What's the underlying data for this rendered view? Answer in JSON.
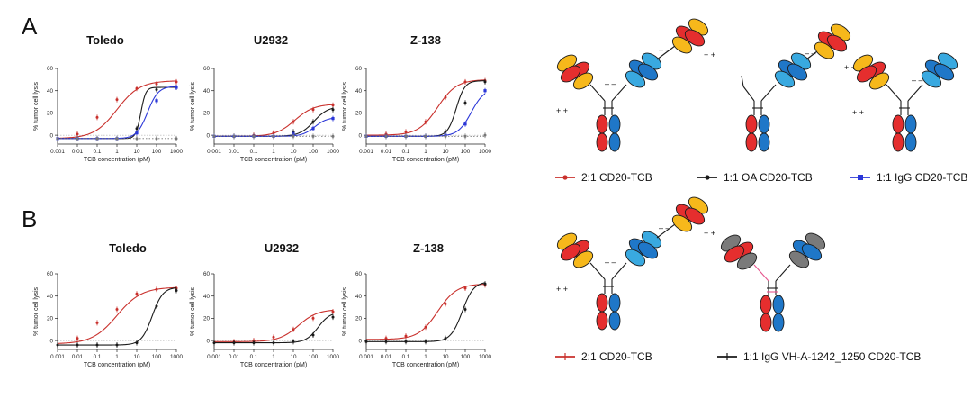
{
  "panels": [
    {
      "letter": "A"
    },
    {
      "letter": "B"
    }
  ],
  "colors": {
    "red": "#c9302c",
    "black": "#1a1a1a",
    "blue": "#2b37d8",
    "gray": "#777777"
  },
  "chart_data": [
    {
      "type": "line",
      "panel": "A",
      "title": "Toledo",
      "xlabel": "TCB concentration (pM)",
      "ylabel": "% tumor cell lysis",
      "xscale": "log",
      "xticks": [
        "0.001",
        "0.01",
        "0.1",
        "1",
        "10",
        "100",
        "1000"
      ],
      "yticks": [
        0,
        20,
        40,
        60
      ],
      "ylim": [
        -8,
        60
      ],
      "series": [
        {
          "key": "red",
          "x": [
            0.01,
            0.1,
            1,
            10,
            100,
            1000
          ],
          "values": [
            1,
            16,
            32,
            42,
            46,
            48
          ],
          "fit": {
            "bottom": -3,
            "top": 49,
            "ec50": 1.0,
            "hill": 0.75
          }
        },
        {
          "key": "black",
          "x": [
            0.001,
            0.01,
            0.1,
            1,
            10,
            100,
            1000
          ],
          "values": [
            -3,
            -3,
            -3,
            -3,
            6,
            41,
            43
          ],
          "fit": {
            "bottom": -3,
            "top": 43,
            "ec50": 16,
            "hill": 3.5
          }
        },
        {
          "key": "blue",
          "x": [
            0.001,
            0.01,
            0.1,
            1,
            10,
            100,
            1000
          ],
          "values": [
            -3,
            -3,
            -3,
            -3,
            2,
            31,
            43
          ],
          "fit": {
            "bottom": -3,
            "top": 44,
            "ec50": 35,
            "hill": 1.6
          }
        },
        {
          "key": "gray",
          "dotted": true,
          "x": [
            0.001,
            0.01,
            0.1,
            1,
            10,
            100,
            1000
          ],
          "values": [
            -3,
            -3,
            -3,
            -3,
            -3,
            -3,
            -3
          ],
          "fit": {
            "bottom": -3,
            "top": -3,
            "ec50": 1,
            "hill": 1
          }
        }
      ]
    },
    {
      "type": "line",
      "panel": "A",
      "title": "U2932",
      "xlabel": "TCB concentration (pM)",
      "ylabel": "% tumor cell lysis",
      "xscale": "log",
      "xticks": [
        "0.001",
        "0.01",
        "0.1",
        "1",
        "10",
        "100",
        "1000"
      ],
      "yticks": [
        0,
        20,
        40,
        60
      ],
      "ylim": [
        -8,
        60
      ],
      "series": [
        {
          "key": "red",
          "x": [
            0.01,
            0.1,
            1,
            10,
            100,
            1000
          ],
          "values": [
            -1,
            0,
            2,
            12,
            23,
            27
          ],
          "fit": {
            "bottom": -1,
            "top": 28,
            "ec50": 12,
            "hill": 0.9
          }
        },
        {
          "key": "black",
          "x": [
            0.001,
            0.01,
            0.1,
            1,
            10,
            100,
            1000
          ],
          "values": [
            -1,
            -1,
            -1,
            -1,
            3,
            12,
            23
          ],
          "fit": {
            "bottom": -1,
            "top": 26,
            "ec50": 110,
            "hill": 1.2
          }
        },
        {
          "key": "blue",
          "x": [
            0.001,
            0.01,
            0.1,
            1,
            10,
            100,
            1000
          ],
          "values": [
            -1,
            -1,
            -1,
            -1,
            1,
            6,
            15
          ],
          "fit": {
            "bottom": -1,
            "top": 16,
            "ec50": 120,
            "hill": 1.4
          }
        },
        {
          "key": "gray",
          "dotted": true,
          "x": [
            0.001,
            0.01,
            0.1,
            1,
            10,
            100,
            1000
          ],
          "values": [
            -1,
            -1,
            -1,
            -1,
            -1,
            -1,
            -1
          ],
          "fit": {
            "bottom": -1,
            "top": -1,
            "ec50": 1,
            "hill": 1
          }
        }
      ]
    },
    {
      "type": "line",
      "panel": "A",
      "title": "Z-138",
      "xlabel": "TCB concentration (pM)",
      "ylabel": "% tumor cell lysis",
      "xscale": "log",
      "xticks": [
        "0.001",
        "0.01",
        "0.1",
        "1",
        "10",
        "100",
        "1000"
      ],
      "yticks": [
        0,
        20,
        40,
        60
      ],
      "ylim": [
        -8,
        60
      ],
      "series": [
        {
          "key": "red",
          "x": [
            0.01,
            0.1,
            1,
            10,
            100,
            1000
          ],
          "values": [
            1,
            3,
            12,
            34,
            48,
            49
          ],
          "fit": {
            "bottom": 0,
            "top": 50,
            "ec50": 4,
            "hill": 0.9
          }
        },
        {
          "key": "black",
          "x": [
            0.001,
            0.01,
            0.1,
            1,
            10,
            100,
            1000
          ],
          "values": [
            -1,
            -1,
            -1,
            -1,
            3,
            29,
            48
          ],
          "fit": {
            "bottom": -1,
            "top": 49,
            "ec50": 35,
            "hill": 2.0
          }
        },
        {
          "key": "blue",
          "x": [
            0.001,
            0.01,
            0.1,
            1,
            10,
            100,
            1000
          ],
          "values": [
            -1,
            -1,
            -1,
            -1,
            0,
            10,
            40
          ],
          "fit": {
            "bottom": -1,
            "top": 42,
            "ec50": 200,
            "hill": 1.3
          }
        },
        {
          "key": "gray",
          "dotted": true,
          "x": [
            0.001,
            0.01,
            0.1,
            1,
            10,
            100,
            1000
          ],
          "values": [
            -1,
            -1,
            -1,
            -1,
            -1,
            -1,
            0
          ],
          "fit": {
            "bottom": -1,
            "top": -1,
            "ec50": 1,
            "hill": 1
          }
        }
      ]
    },
    {
      "type": "line",
      "panel": "B",
      "title": "Toledo",
      "xlabel": "TCB concentration (pM)",
      "ylabel": "% tumor cell lysis",
      "xscale": "log",
      "xticks": [
        "0.001",
        "0.01",
        "0.1",
        "1",
        "10",
        "100",
        "1000"
      ],
      "yticks": [
        0,
        20,
        40,
        60
      ],
      "ylim": [
        -8,
        60
      ],
      "series": [
        {
          "key": "red",
          "x": [
            0.01,
            0.1,
            1,
            10,
            100,
            1000
          ],
          "values": [
            2,
            16,
            28,
            42,
            46,
            47
          ],
          "fit": {
            "bottom": -3,
            "top": 48,
            "ec50": 1.0,
            "hill": 0.7
          }
        },
        {
          "key": "black",
          "x": [
            0.001,
            0.01,
            0.1,
            1,
            10,
            100,
            1000
          ],
          "values": [
            -4,
            -4,
            -4,
            -4,
            -2,
            31,
            45
          ],
          "fit": {
            "bottom": -4,
            "top": 48,
            "ec50": 60,
            "hill": 1.6
          }
        }
      ]
    },
    {
      "type": "line",
      "panel": "B",
      "title": "U2932",
      "xlabel": "TCB concentration (pM)",
      "ylabel": "% tumor cell lysis",
      "xscale": "log",
      "xticks": [
        "0.001",
        "0.01",
        "0.1",
        "1",
        "10",
        "100",
        "1000"
      ],
      "yticks": [
        0,
        20,
        40,
        60
      ],
      "ylim": [
        -8,
        60
      ],
      "series": [
        {
          "key": "red",
          "x": [
            0.01,
            0.1,
            1,
            10,
            100,
            1000
          ],
          "values": [
            -1,
            0,
            3,
            10,
            20,
            26
          ],
          "fit": {
            "bottom": -1,
            "top": 28,
            "ec50": 18,
            "hill": 0.9
          }
        },
        {
          "key": "black",
          "x": [
            0.001,
            0.01,
            0.1,
            1,
            10,
            100,
            1000
          ],
          "values": [
            -2,
            -2,
            -2,
            -2,
            -1,
            5,
            21
          ],
          "fit": {
            "bottom": -2,
            "top": 26,
            "ec50": 180,
            "hill": 1.4
          }
        }
      ]
    },
    {
      "type": "line",
      "panel": "B",
      "title": "Z-138",
      "xlabel": "TCB concentration (pM)",
      "ylabel": "% tumor cell lysis",
      "xscale": "log",
      "xticks": [
        "0.001",
        "0.01",
        "0.1",
        "1",
        "10",
        "100",
        "1000"
      ],
      "yticks": [
        0,
        20,
        40,
        60
      ],
      "ylim": [
        -8,
        60
      ],
      "series": [
        {
          "key": "red",
          "x": [
            0.01,
            0.1,
            1,
            10,
            100,
            1000
          ],
          "values": [
            2,
            4,
            12,
            33,
            47,
            50
          ],
          "fit": {
            "bottom": 1,
            "top": 51,
            "ec50": 4,
            "hill": 0.9
          }
        },
        {
          "key": "black",
          "x": [
            0.001,
            0.01,
            0.1,
            1,
            10,
            100,
            1000
          ],
          "values": [
            -1,
            -1,
            -1,
            -1,
            2,
            28,
            51
          ],
          "fit": {
            "bottom": -1,
            "top": 53,
            "ec50": 70,
            "hill": 1.5
          }
        }
      ]
    }
  ],
  "legends": {
    "A": [
      {
        "key": "red",
        "label": "2:1 CD20-TCB"
      },
      {
        "key": "black",
        "label": "1:1 OA CD20-TCB"
      },
      {
        "key": "blue",
        "label": "1:1 IgG CD20-TCB"
      }
    ],
    "B": [
      {
        "key": "red",
        "label": "2:1 CD20-TCB"
      },
      {
        "key": "black",
        "label": "1:1 IgG VH-A-1242_1250 CD20-TCB"
      }
    ]
  },
  "diagrams": {
    "charge_minus": "– –",
    "charge_plus": "+ +",
    "items": [
      {
        "variant": "2:1"
      },
      {
        "variant": "OA"
      },
      {
        "variant": "IgG"
      },
      {
        "variant": "2:1"
      },
      {
        "variant": "VH"
      }
    ]
  }
}
